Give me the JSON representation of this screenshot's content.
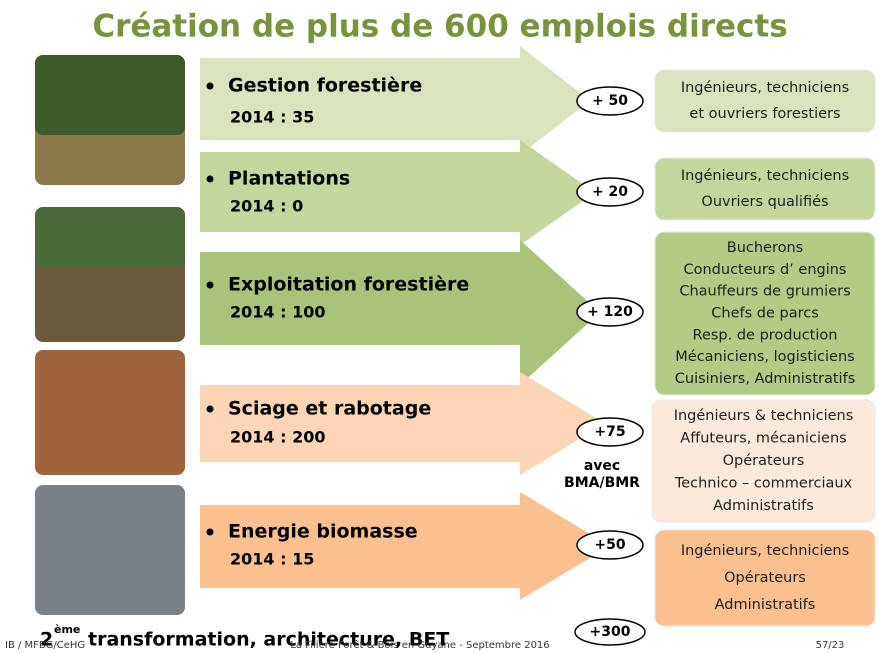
{
  "header": {
    "title": "Création de plus de 600 emplois directs"
  },
  "rows": [
    {
      "name": "Gestion forestière",
      "year_label": "2014 :  35",
      "badge": "+ 50",
      "jobs": [
        "Ingénieurs, techniciens",
        "et ouvriers forestiers"
      ]
    },
    {
      "name": "Plantations",
      "year_label": "2014 :  0",
      "badge": "+ 20",
      "jobs": [
        "Ingénieurs, techniciens",
        "Ouvriers qualifiés"
      ]
    },
    {
      "name": "Exploitation forestière",
      "year_label": "2014 : 100",
      "badge": "+ 120",
      "jobs": [
        "Bucherons",
        "Conducteurs d’ engins",
        "Chauffeurs de grumiers",
        "Chefs de parcs",
        "Resp. de production",
        "Mécaniciens, logisticiens",
        "Cuisiniers, Administratifs"
      ]
    },
    {
      "name": "Sciage et rabotage",
      "year_label": "2014 : 200",
      "badge": "+75",
      "note": [
        "avec",
        "BMA/BMR"
      ],
      "jobs": [
        "Ingénieurs & techniciens",
        "Affuteurs, mécaniciens",
        "Opérateurs",
        "Technico – commerciaux",
        "Administratifs"
      ]
    },
    {
      "name": "Energie biomasse",
      "year_label": "2014 : 15",
      "badge": "+50",
      "jobs": [
        "Ingénieurs, techniciens",
        "Opérateurs",
        "Administratifs"
      ]
    }
  ],
  "bottom": {
    "number": "2",
    "superscript": "ème",
    "text": "transformation, architecture, BET",
    "badge": "+300"
  },
  "footer": {
    "left": "IB / MFBG/CeHG",
    "center": "La Filière Forêt & Bois en Guyane  - Septembre 2016",
    "right": "57/23"
  }
}
